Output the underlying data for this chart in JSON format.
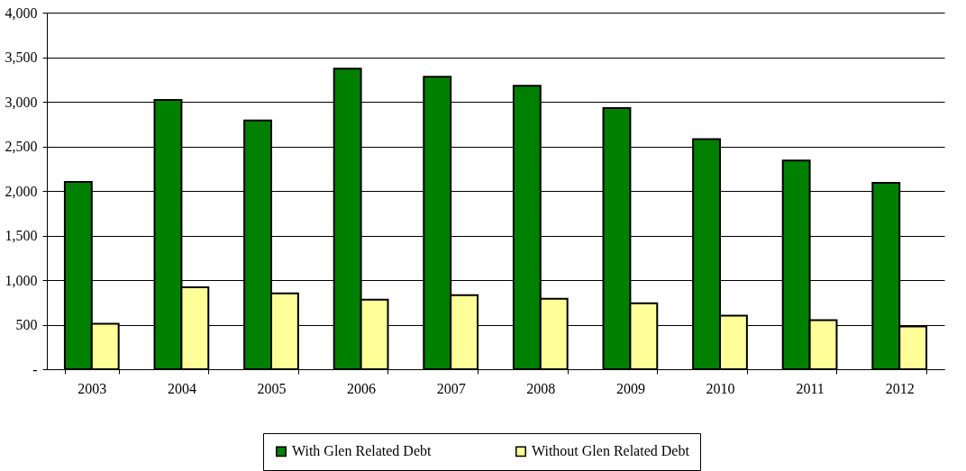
{
  "chart_data": {
    "type": "bar",
    "categories": [
      "2003",
      "2004",
      "2005",
      "2006",
      "2007",
      "2008",
      "2009",
      "2010",
      "2011",
      "2012"
    ],
    "series": [
      {
        "name": "With Glen Related Debt",
        "color": "#008000",
        "values": [
          2100,
          3020,
          2790,
          3370,
          3280,
          3180,
          2930,
          2580,
          2340,
          2090
        ]
      },
      {
        "name": "Without Glen Related Debt",
        "color": "#ffff99",
        "values": [
          510,
          920,
          850,
          780,
          830,
          790,
          740,
          600,
          550,
          480
        ]
      }
    ],
    "ylim": [
      0,
      4000
    ],
    "yticks": [
      {
        "value": 0,
        "label": "-"
      },
      500,
      {
        "value": 1000,
        "label": "1,000"
      },
      {
        "value": 1500,
        "label": "1,500"
      },
      {
        "value": 2000,
        "label": "2,000"
      },
      {
        "value": 2500,
        "label": "2,500"
      },
      {
        "value": 3000,
        "label": "3,000"
      },
      {
        "value": 3500,
        "label": "3,500"
      },
      {
        "value": 4000,
        "label": "4,000"
      }
    ],
    "grid": "y",
    "legend": "bottom"
  }
}
